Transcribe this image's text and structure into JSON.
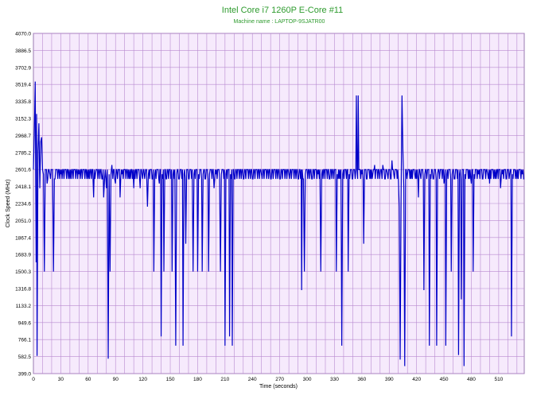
{
  "colors": {
    "title": "#2e9b2e",
    "plot_background": "#f6eafc",
    "grid": "#b88ad0",
    "series": "#0000c8",
    "axis_text": "#000000"
  },
  "chart_data": {
    "type": "line",
    "title": "Intel Core i7 1260P E-Core #11",
    "subtitle": "Machine name : LAPTOP-9SJATR00",
    "xlabel": "Time (seconds)",
    "ylabel": "Clock Speed (MHz)",
    "xlim": [
      0,
      538
    ],
    "ylim": [
      399.0,
      4070.0
    ],
    "grid": true,
    "legend": "none",
    "x_ticks": [
      0,
      30,
      60,
      90,
      120,
      150,
      180,
      210,
      240,
      270,
      300,
      330,
      360,
      390,
      420,
      450,
      480,
      510
    ],
    "y_ticks": [
      "399.0",
      "582.5",
      "766.1",
      "949.6",
      "1133.2",
      "1316.8",
      "1500.3",
      "1683.9",
      "1867.4",
      "2051.0",
      "2234.6",
      "2418.1",
      "2601.6",
      "2785.2",
      "2968.7",
      "3152.3",
      "3335.8",
      "3519.4",
      "3702.9",
      "3886.5",
      "4070.0"
    ],
    "baseline": {
      "low": 2500,
      "high": 2600
    },
    "series": [
      {
        "values": [
          [
            0,
            2600
          ],
          [
            1,
            3000
          ],
          [
            2,
            3550
          ],
          [
            3,
            1600
          ],
          [
            3.5,
            3200
          ],
          [
            4,
            590
          ],
          [
            5,
            2800
          ],
          [
            6,
            3100
          ],
          [
            7,
            2400
          ],
          [
            8,
            2900
          ],
          [
            9,
            2950
          ],
          [
            10,
            2600
          ],
          [
            11,
            2550
          ],
          [
            12,
            1500
          ],
          [
            13,
            2600
          ],
          [
            15,
            2450
          ],
          [
            18,
            2550
          ],
          [
            21,
            2600
          ],
          [
            22,
            1500
          ],
          [
            23,
            2500
          ],
          [
            26,
            2600
          ],
          [
            30,
            2550
          ],
          [
            35,
            2600
          ],
          [
            40,
            2500
          ],
          [
            45,
            2600
          ],
          [
            50,
            2550
          ],
          [
            55,
            2600
          ],
          [
            60,
            2500
          ],
          [
            65,
            2600
          ],
          [
            66,
            2300
          ],
          [
            68,
            2550
          ],
          [
            70,
            2600
          ],
          [
            75,
            2500
          ],
          [
            77,
            2300
          ],
          [
            78,
            2500
          ],
          [
            80,
            2400
          ],
          [
            81,
            2600
          ],
          [
            82,
            560
          ],
          [
            83,
            2550
          ],
          [
            84,
            1500
          ],
          [
            85,
            2550
          ],
          [
            86,
            2650
          ],
          [
            87,
            2500
          ],
          [
            90,
            2450
          ],
          [
            93,
            2600
          ],
          [
            95,
            2300
          ],
          [
            97,
            2550
          ],
          [
            100,
            2600
          ],
          [
            105,
            2500
          ],
          [
            110,
            2400
          ],
          [
            115,
            2600
          ],
          [
            117,
            2400
          ],
          [
            119,
            2550
          ],
          [
            121,
            2600
          ],
          [
            122,
            2500
          ],
          [
            123,
            2600
          ],
          [
            124,
            2600
          ],
          [
            125,
            2200
          ],
          [
            126,
            2550
          ],
          [
            128,
            2600
          ],
          [
            130,
            2500
          ],
          [
            132,
            1500
          ],
          [
            133,
            2550
          ],
          [
            136,
            2600
          ],
          [
            138,
            2450
          ],
          [
            140,
            800
          ],
          [
            141,
            2550
          ],
          [
            143,
            1500
          ],
          [
            144,
            2600
          ],
          [
            146,
            2500
          ],
          [
            150,
            2600
          ],
          [
            152,
            1500
          ],
          [
            153,
            2550
          ],
          [
            155,
            2600
          ],
          [
            156,
            700
          ],
          [
            157,
            2550
          ],
          [
            160,
            2500
          ],
          [
            162,
            2600
          ],
          [
            164,
            700
          ],
          [
            165,
            2550
          ],
          [
            167,
            1800
          ],
          [
            168,
            2600
          ],
          [
            170,
            2500
          ],
          [
            172,
            2600
          ],
          [
            175,
            1500
          ],
          [
            176,
            2550
          ],
          [
            178,
            2600
          ],
          [
            180,
            1500
          ],
          [
            181,
            2550
          ],
          [
            183,
            2600
          ],
          [
            185,
            1500
          ],
          [
            186,
            2550
          ],
          [
            188,
            2500
          ],
          [
            190,
            2600
          ],
          [
            192,
            1500
          ],
          [
            193,
            2550
          ],
          [
            195,
            2600
          ],
          [
            198,
            2400
          ],
          [
            200,
            2550
          ],
          [
            202,
            2600
          ],
          [
            205,
            1500
          ],
          [
            206,
            2550
          ],
          [
            208,
            2600
          ],
          [
            210,
            700
          ],
          [
            211,
            2550
          ],
          [
            213,
            2600
          ],
          [
            215,
            800
          ],
          [
            216,
            2550
          ],
          [
            218,
            700
          ],
          [
            219,
            2600
          ],
          [
            221,
            2500
          ],
          [
            225,
            2600
          ],
          [
            230,
            2500
          ],
          [
            235,
            2600
          ],
          [
            240,
            2500
          ],
          [
            245,
            2600
          ],
          [
            250,
            2550
          ],
          [
            255,
            2600
          ],
          [
            260,
            2500
          ],
          [
            265,
            2600
          ],
          [
            270,
            2500
          ],
          [
            275,
            2600
          ],
          [
            280,
            2550
          ],
          [
            285,
            2600
          ],
          [
            290,
            2500
          ],
          [
            294,
            1300
          ],
          [
            296,
            2500
          ],
          [
            297,
            1500
          ],
          [
            298,
            2550
          ],
          [
            300,
            2600
          ],
          [
            305,
            2500
          ],
          [
            310,
            2600
          ],
          [
            312,
            2550
          ],
          [
            315,
            1500
          ],
          [
            316,
            2550
          ],
          [
            320,
            2600
          ],
          [
            325,
            2500
          ],
          [
            330,
            2600
          ],
          [
            332,
            1500
          ],
          [
            333,
            2550
          ],
          [
            335,
            2500
          ],
          [
            338,
            700
          ],
          [
            339,
            2550
          ],
          [
            341,
            2600
          ],
          [
            345,
            1500
          ],
          [
            346,
            2550
          ],
          [
            348,
            2600
          ],
          [
            350,
            2500
          ],
          [
            352,
            2600
          ],
          [
            354,
            3400
          ],
          [
            356,
            3400
          ],
          [
            358,
            2600
          ],
          [
            360,
            2550
          ],
          [
            362,
            1800
          ],
          [
            363,
            2600
          ],
          [
            365,
            2500
          ],
          [
            368,
            2600
          ],
          [
            370,
            2500
          ],
          [
            372,
            2550
          ],
          [
            374,
            2650
          ],
          [
            376,
            2600
          ],
          [
            380,
            2550
          ],
          [
            383,
            2650
          ],
          [
            385,
            2500
          ],
          [
            388,
            2550
          ],
          [
            390,
            2600
          ],
          [
            392,
            2500
          ],
          [
            393,
            2700
          ],
          [
            395,
            2550
          ],
          [
            398,
            2600
          ],
          [
            400,
            2500
          ],
          [
            401,
            2200
          ],
          [
            402,
            550
          ],
          [
            403,
            2300
          ],
          [
            404,
            3400
          ],
          [
            405,
            2800
          ],
          [
            406,
            2400
          ],
          [
            407,
            480
          ],
          [
            408,
            2600
          ],
          [
            410,
            2550
          ],
          [
            412,
            2600
          ],
          [
            414,
            2500
          ],
          [
            416,
            2600
          ],
          [
            418,
            2550
          ],
          [
            420,
            2500
          ],
          [
            422,
            2300
          ],
          [
            424,
            2550
          ],
          [
            426,
            2600
          ],
          [
            428,
            1300
          ],
          [
            429,
            2550
          ],
          [
            432,
            2600
          ],
          [
            434,
            700
          ],
          [
            435,
            2550
          ],
          [
            438,
            2500
          ],
          [
            440,
            2600
          ],
          [
            442,
            700
          ],
          [
            443,
            2550
          ],
          [
            446,
            2600
          ],
          [
            450,
            2450
          ],
          [
            452,
            700
          ],
          [
            453,
            2550
          ],
          [
            456,
            2600
          ],
          [
            458,
            1500
          ],
          [
            459,
            2550
          ],
          [
            462,
            2500
          ],
          [
            464,
            2600
          ],
          [
            466,
            600
          ],
          [
            467,
            2550
          ],
          [
            469,
            1200
          ],
          [
            470,
            2600
          ],
          [
            472,
            480
          ],
          [
            473,
            2550
          ],
          [
            476,
            2600
          ],
          [
            478,
            2500
          ],
          [
            480,
            2450
          ],
          [
            482,
            1500
          ],
          [
            483,
            2550
          ],
          [
            485,
            2600
          ],
          [
            488,
            2550
          ],
          [
            490,
            2600
          ],
          [
            492,
            2500
          ],
          [
            495,
            2600
          ],
          [
            498,
            2550
          ],
          [
            500,
            2450
          ],
          [
            503,
            2600
          ],
          [
            506,
            2500
          ],
          [
            510,
            2600
          ],
          [
            512,
            2400
          ],
          [
            514,
            2550
          ],
          [
            516,
            2600
          ],
          [
            518,
            2500
          ],
          [
            520,
            2600
          ],
          [
            522,
            2550
          ],
          [
            524,
            800
          ],
          [
            525,
            2550
          ],
          [
            527,
            2600
          ],
          [
            530,
            2500
          ],
          [
            533,
            2600
          ],
          [
            536,
            2550
          ],
          [
            538,
            2500
          ]
        ]
      }
    ]
  }
}
